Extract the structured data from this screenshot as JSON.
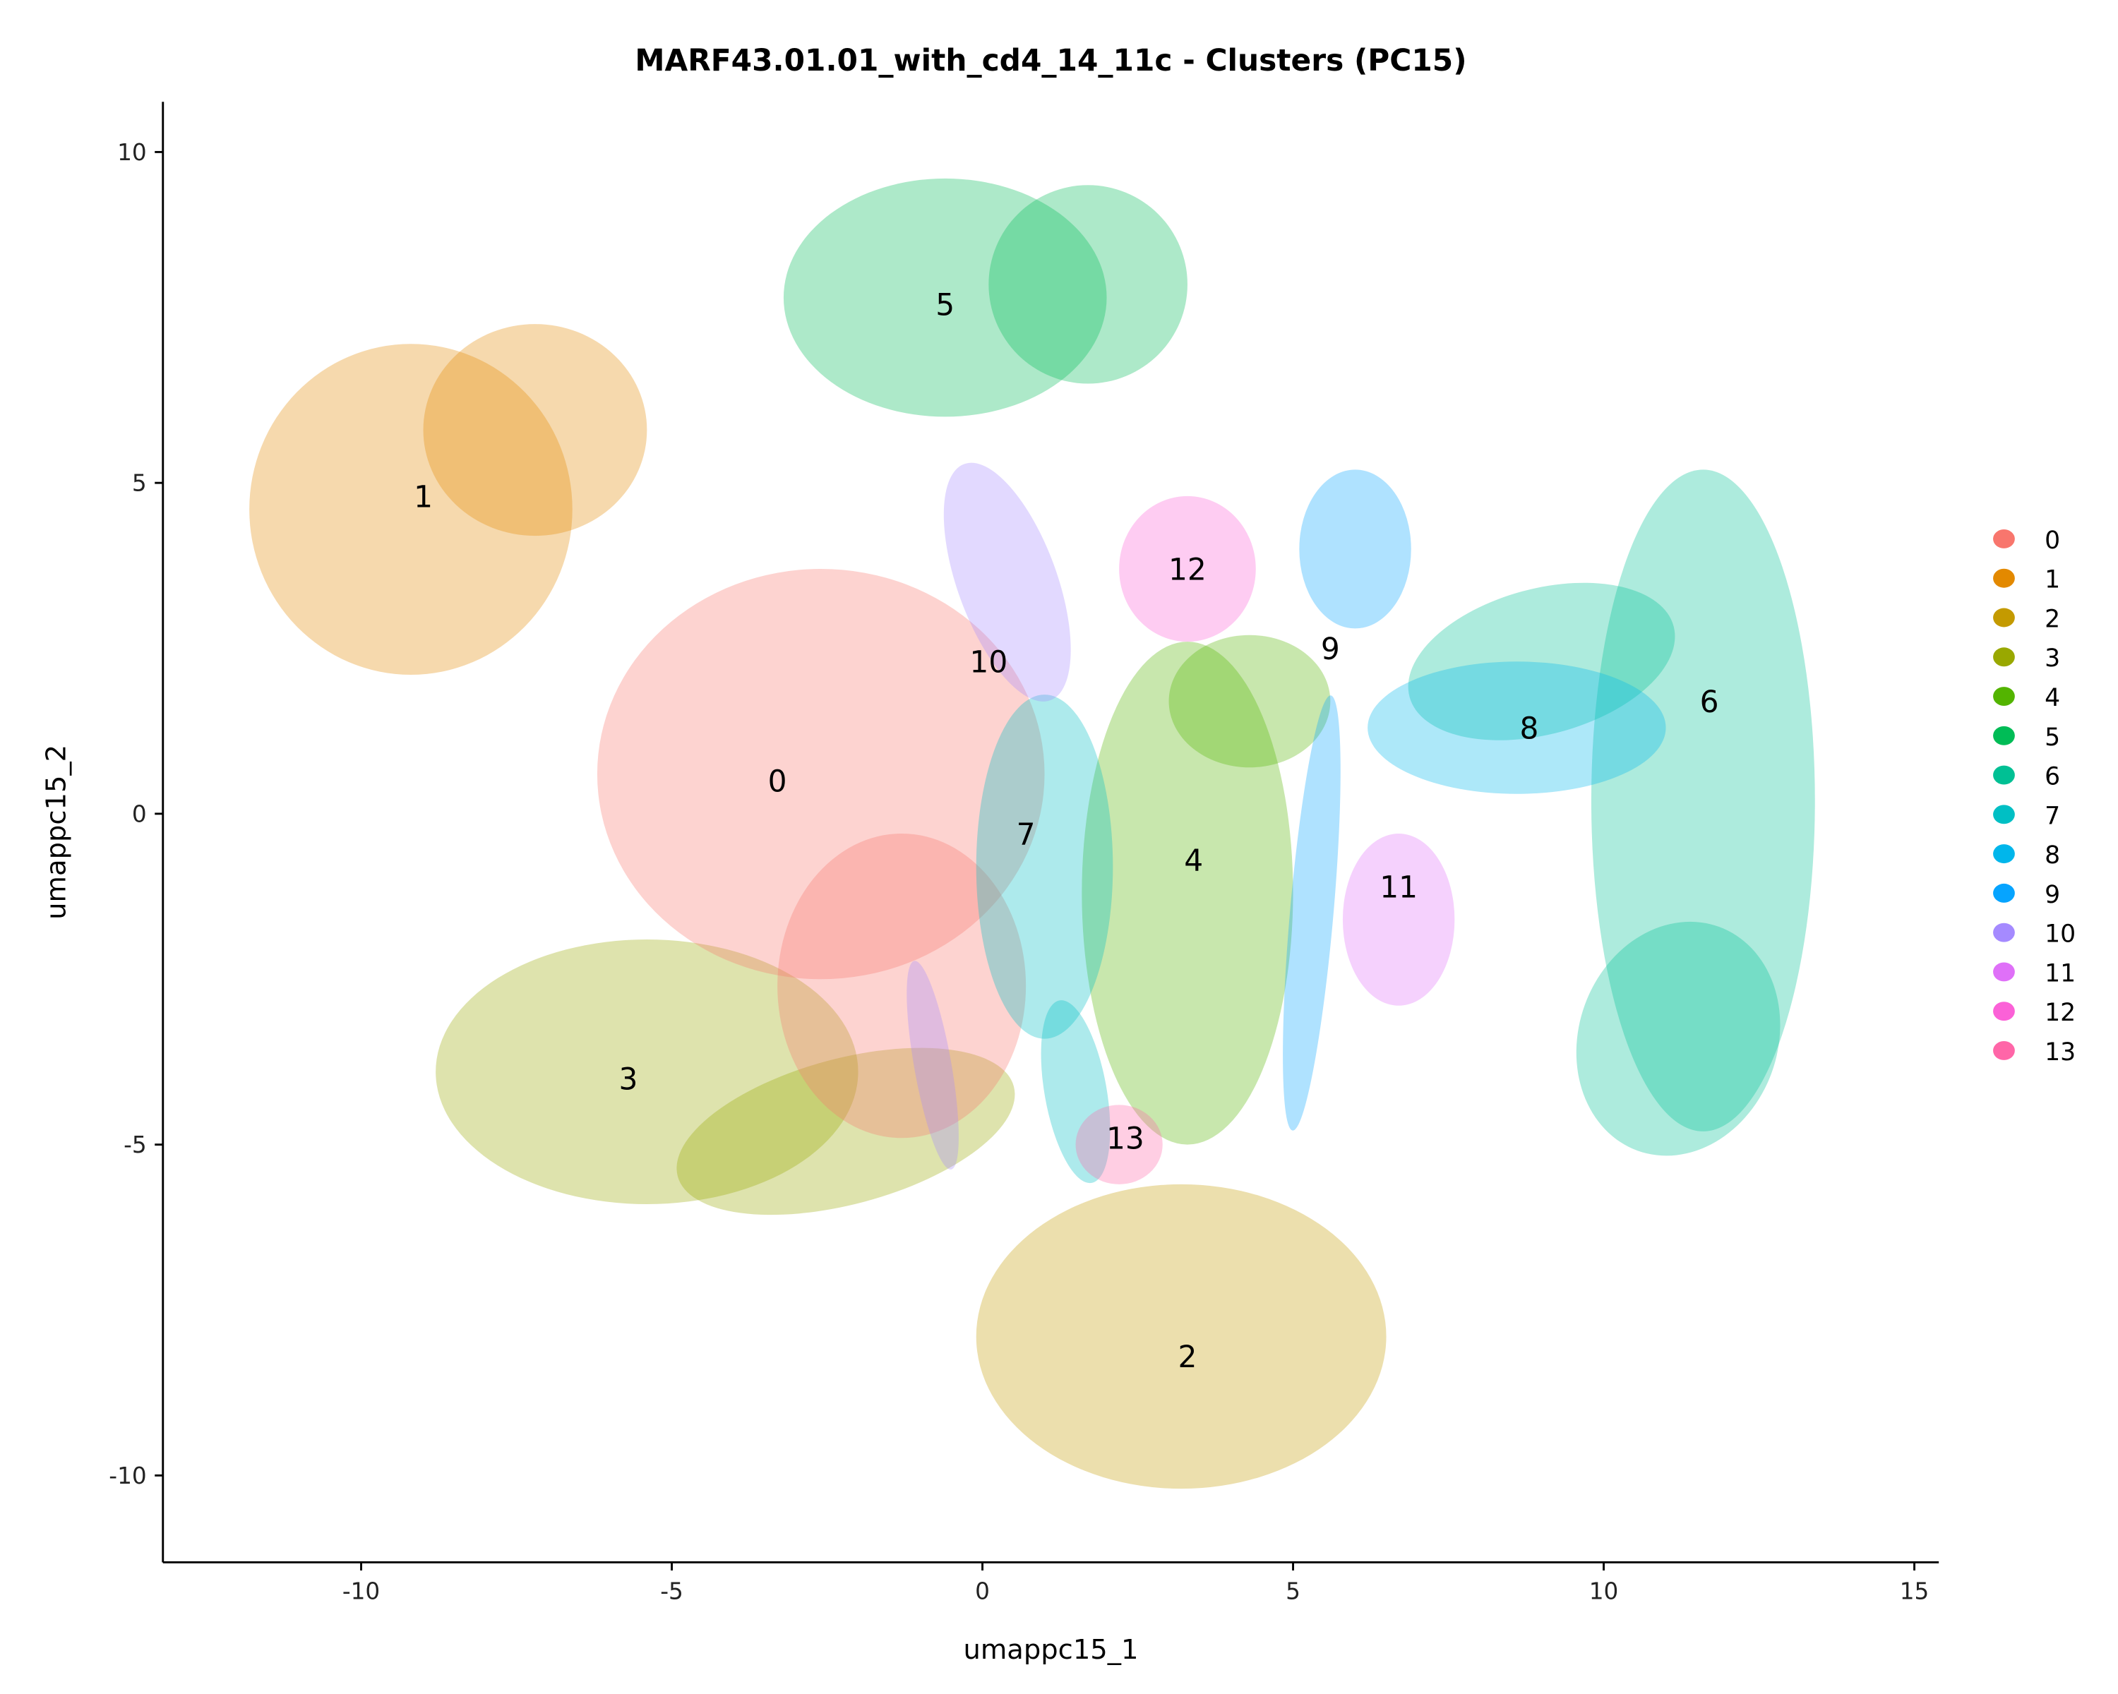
{
  "chart_data": {
    "type": "scatter",
    "title": "MARF43.01.01_with_cd4_14_11c - Clusters (PC15)",
    "xlabel": "umappc15_1",
    "ylabel": "umappc15_2",
    "xlim": [
      -13.2,
      15.4
    ],
    "ylim": [
      -11.3,
      10.8
    ],
    "xticks": [
      -10,
      -5,
      0,
      5,
      10,
      15
    ],
    "yticks": [
      -10,
      -5,
      0,
      5,
      10
    ],
    "xtick_labels": [
      "-10",
      "-5",
      "0",
      "5",
      "10",
      "15"
    ],
    "ytick_labels": [
      "-10",
      "-5",
      "0",
      "5",
      "10"
    ],
    "grid": false,
    "legend_position": "right",
    "legend": [
      {
        "label": "0",
        "color": "#F8766D"
      },
      {
        "label": "1",
        "color": "#E38900"
      },
      {
        "label": "2",
        "color": "#C49A00"
      },
      {
        "label": "3",
        "color": "#99A800"
      },
      {
        "label": "4",
        "color": "#53B400"
      },
      {
        "label": "5",
        "color": "#00BC56"
      },
      {
        "label": "6",
        "color": "#00C094"
      },
      {
        "label": "7",
        "color": "#00BFC4"
      },
      {
        "label": "8",
        "color": "#00B6EB"
      },
      {
        "label": "9",
        "color": "#06A4FF"
      },
      {
        "label": "10",
        "color": "#A58AFF"
      },
      {
        "label": "11",
        "color": "#DF70F8"
      },
      {
        "label": "12",
        "color": "#FB61D7"
      },
      {
        "label": "13",
        "color": "#FF66A8"
      }
    ],
    "clusters": [
      {
        "id": "6",
        "label_x": 11.7,
        "label_y": 1.7,
        "regions": [
          [
            11.6,
            0.2,
            1.8,
            5.0,
            0
          ],
          [
            9.0,
            2.3,
            2.2,
            1.1,
            -15
          ],
          [
            11.2,
            -3.4,
            1.6,
            1.8,
            20
          ]
        ]
      },
      {
        "id": "8",
        "label_x": 8.8,
        "label_y": 1.3,
        "regions": [
          [
            8.6,
            1.3,
            2.4,
            1.0,
            0
          ]
        ]
      },
      {
        "id": "1",
        "label_x": -9.0,
        "label_y": 4.8,
        "regions": [
          [
            -9.2,
            4.6,
            2.6,
            2.5,
            0
          ],
          [
            -7.2,
            5.8,
            1.8,
            1.6,
            0
          ]
        ]
      },
      {
        "id": "5",
        "label_x": -0.6,
        "label_y": 7.7,
        "regions": [
          [
            -0.6,
            7.8,
            2.6,
            1.8,
            0
          ],
          [
            1.7,
            8.0,
            1.6,
            1.5,
            0
          ]
        ]
      },
      {
        "id": "3",
        "label_x": -5.7,
        "label_y": -4.0,
        "regions": [
          [
            -5.4,
            -3.9,
            3.4,
            2.0,
            0
          ],
          [
            -2.2,
            -4.8,
            2.8,
            1.1,
            -15
          ]
        ]
      },
      {
        "id": "0",
        "label_x": -3.3,
        "label_y": 0.5,
        "regions": [
          [
            -2.6,
            0.6,
            3.6,
            3.1,
            0
          ],
          [
            -1.3,
            -2.6,
            2.0,
            2.3,
            0
          ]
        ]
      },
      {
        "id": "2",
        "label_x": 3.3,
        "label_y": -8.2,
        "regions": [
          [
            3.2,
            -7.9,
            3.3,
            2.3,
            0
          ]
        ]
      },
      {
        "id": "4",
        "label_x": 3.4,
        "label_y": -0.7,
        "regions": [
          [
            3.3,
            -1.2,
            1.7,
            3.8,
            0
          ],
          [
            4.3,
            1.7,
            1.3,
            1.0,
            0
          ]
        ]
      },
      {
        "id": "7",
        "label_x": 0.7,
        "label_y": -0.3,
        "regions": [
          [
            1.0,
            -0.8,
            1.1,
            2.6,
            0
          ],
          [
            1.5,
            -4.2,
            0.5,
            1.4,
            -10
          ]
        ]
      },
      {
        "id": "10",
        "label_x": 0.1,
        "label_y": 2.3,
        "regions": [
          [
            0.4,
            3.5,
            0.8,
            1.9,
            -20
          ],
          [
            -0.8,
            -3.8,
            0.3,
            1.6,
            -10
          ]
        ]
      },
      {
        "id": "12",
        "label_x": 3.3,
        "label_y": 3.7,
        "regions": [
          [
            3.3,
            3.7,
            1.1,
            1.1,
            0
          ]
        ]
      },
      {
        "id": "9",
        "label_x": 5.6,
        "label_y": 2.5,
        "regions": [
          [
            6.0,
            4.0,
            0.9,
            1.2,
            0
          ],
          [
            5.3,
            -1.5,
            0.35,
            3.3,
            5
          ]
        ]
      },
      {
        "id": "11",
        "label_x": 6.7,
        "label_y": -1.1,
        "regions": [
          [
            6.7,
            -1.6,
            0.9,
            1.3,
            0
          ]
        ]
      },
      {
        "id": "13",
        "label_x": 2.3,
        "label_y": -4.9,
        "regions": [
          [
            2.2,
            -5.0,
            0.7,
            0.6,
            0
          ]
        ]
      }
    ]
  }
}
